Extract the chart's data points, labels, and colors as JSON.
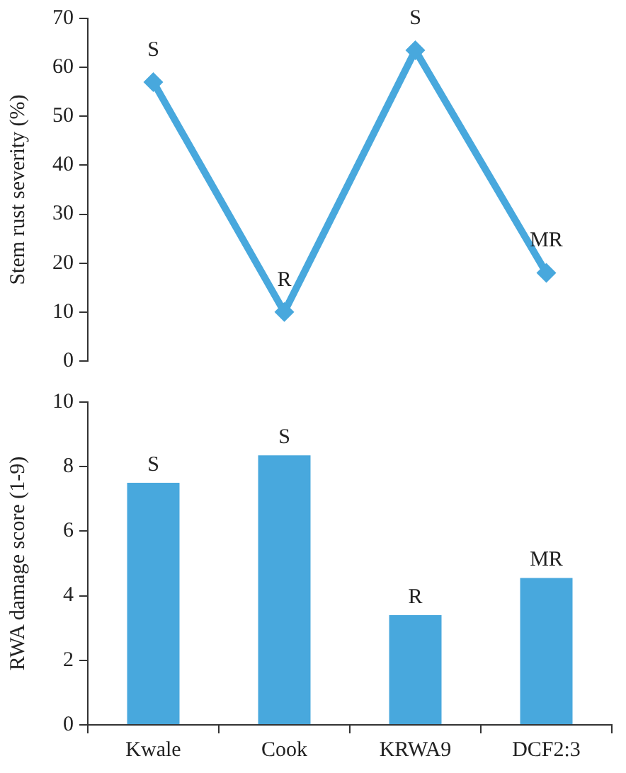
{
  "chart_data": [
    {
      "type": "line",
      "ylabel": "Stem rust severity (%)",
      "categories": [
        null,
        null,
        null,
        null
      ],
      "values": [
        57,
        10,
        63.5,
        18
      ],
      "value_labels": [
        "S",
        "R",
        "S",
        "MR"
      ],
      "color": "#48a8dd",
      "ylim": [
        0,
        70
      ],
      "yticks": [
        0,
        10,
        20,
        30,
        40,
        50,
        60,
        70
      ],
      "marker": "diamond",
      "tick_labels": "y",
      "grid": false
    },
    {
      "type": "bar",
      "ylabel": "RWA damage score (1-9)",
      "categories": [
        "Kwale",
        "Cook",
        "KRWA9",
        "DCF2:3"
      ],
      "values": [
        7.5,
        8.35,
        3.4,
        4.55
      ],
      "value_labels": [
        "S",
        "S",
        "R",
        "MR"
      ],
      "color": "#48a8dd",
      "ylim": [
        0,
        10
      ],
      "yticks": [
        0,
        2,
        4,
        6,
        8,
        10
      ],
      "grid": false
    }
  ]
}
